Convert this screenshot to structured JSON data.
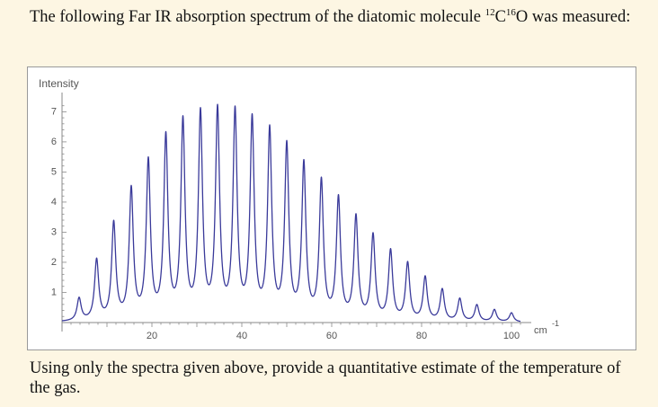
{
  "text": {
    "intro_before": "The following Far IR absorption spectrum of the diatomic molecule ",
    "mass_c": "12",
    "atom_c": "C",
    "mass_o": "16",
    "atom_o": "O",
    "intro_after": " was measured:",
    "question": "Using only the spectra given above, provide a quantitative estimate of the temperature of the gas."
  },
  "chart_data": {
    "type": "line",
    "title": "",
    "ylabel": "Intensity",
    "xlabel": "cm",
    "xlabel_superscript": "-1",
    "xlim": [
      0,
      102
    ],
    "ylim": [
      -0.3,
      7.4
    ],
    "x_ticks": [
      20,
      40,
      60,
      80,
      100
    ],
    "y_ticks": [
      1,
      2,
      3,
      4,
      5,
      6,
      7
    ],
    "line_color": "#3a3a9a",
    "peak_halfwidth": 0.55,
    "peaks": [
      {
        "x": 3.8,
        "y": 0.75
      },
      {
        "x": 7.7,
        "y": 2.0
      },
      {
        "x": 11.5,
        "y": 3.2
      },
      {
        "x": 15.4,
        "y": 4.3
      },
      {
        "x": 19.2,
        "y": 5.2
      },
      {
        "x": 23.1,
        "y": 6.0
      },
      {
        "x": 26.9,
        "y": 6.5
      },
      {
        "x": 30.8,
        "y": 6.75
      },
      {
        "x": 34.6,
        "y": 6.85
      },
      {
        "x": 38.5,
        "y": 6.8
      },
      {
        "x": 42.3,
        "y": 6.55
      },
      {
        "x": 46.2,
        "y": 6.2
      },
      {
        "x": 50.0,
        "y": 5.7
      },
      {
        "x": 53.8,
        "y": 5.1
      },
      {
        "x": 57.7,
        "y": 4.55
      },
      {
        "x": 61.5,
        "y": 4.0
      },
      {
        "x": 65.4,
        "y": 3.4
      },
      {
        "x": 69.2,
        "y": 2.8
      },
      {
        "x": 73.1,
        "y": 2.3
      },
      {
        "x": 76.9,
        "y": 1.9
      },
      {
        "x": 80.8,
        "y": 1.45
      },
      {
        "x": 84.6,
        "y": 1.05
      },
      {
        "x": 88.5,
        "y": 0.75
      },
      {
        "x": 92.3,
        "y": 0.55
      },
      {
        "x": 96.2,
        "y": 0.4
      },
      {
        "x": 100.0,
        "y": 0.3
      }
    ]
  }
}
